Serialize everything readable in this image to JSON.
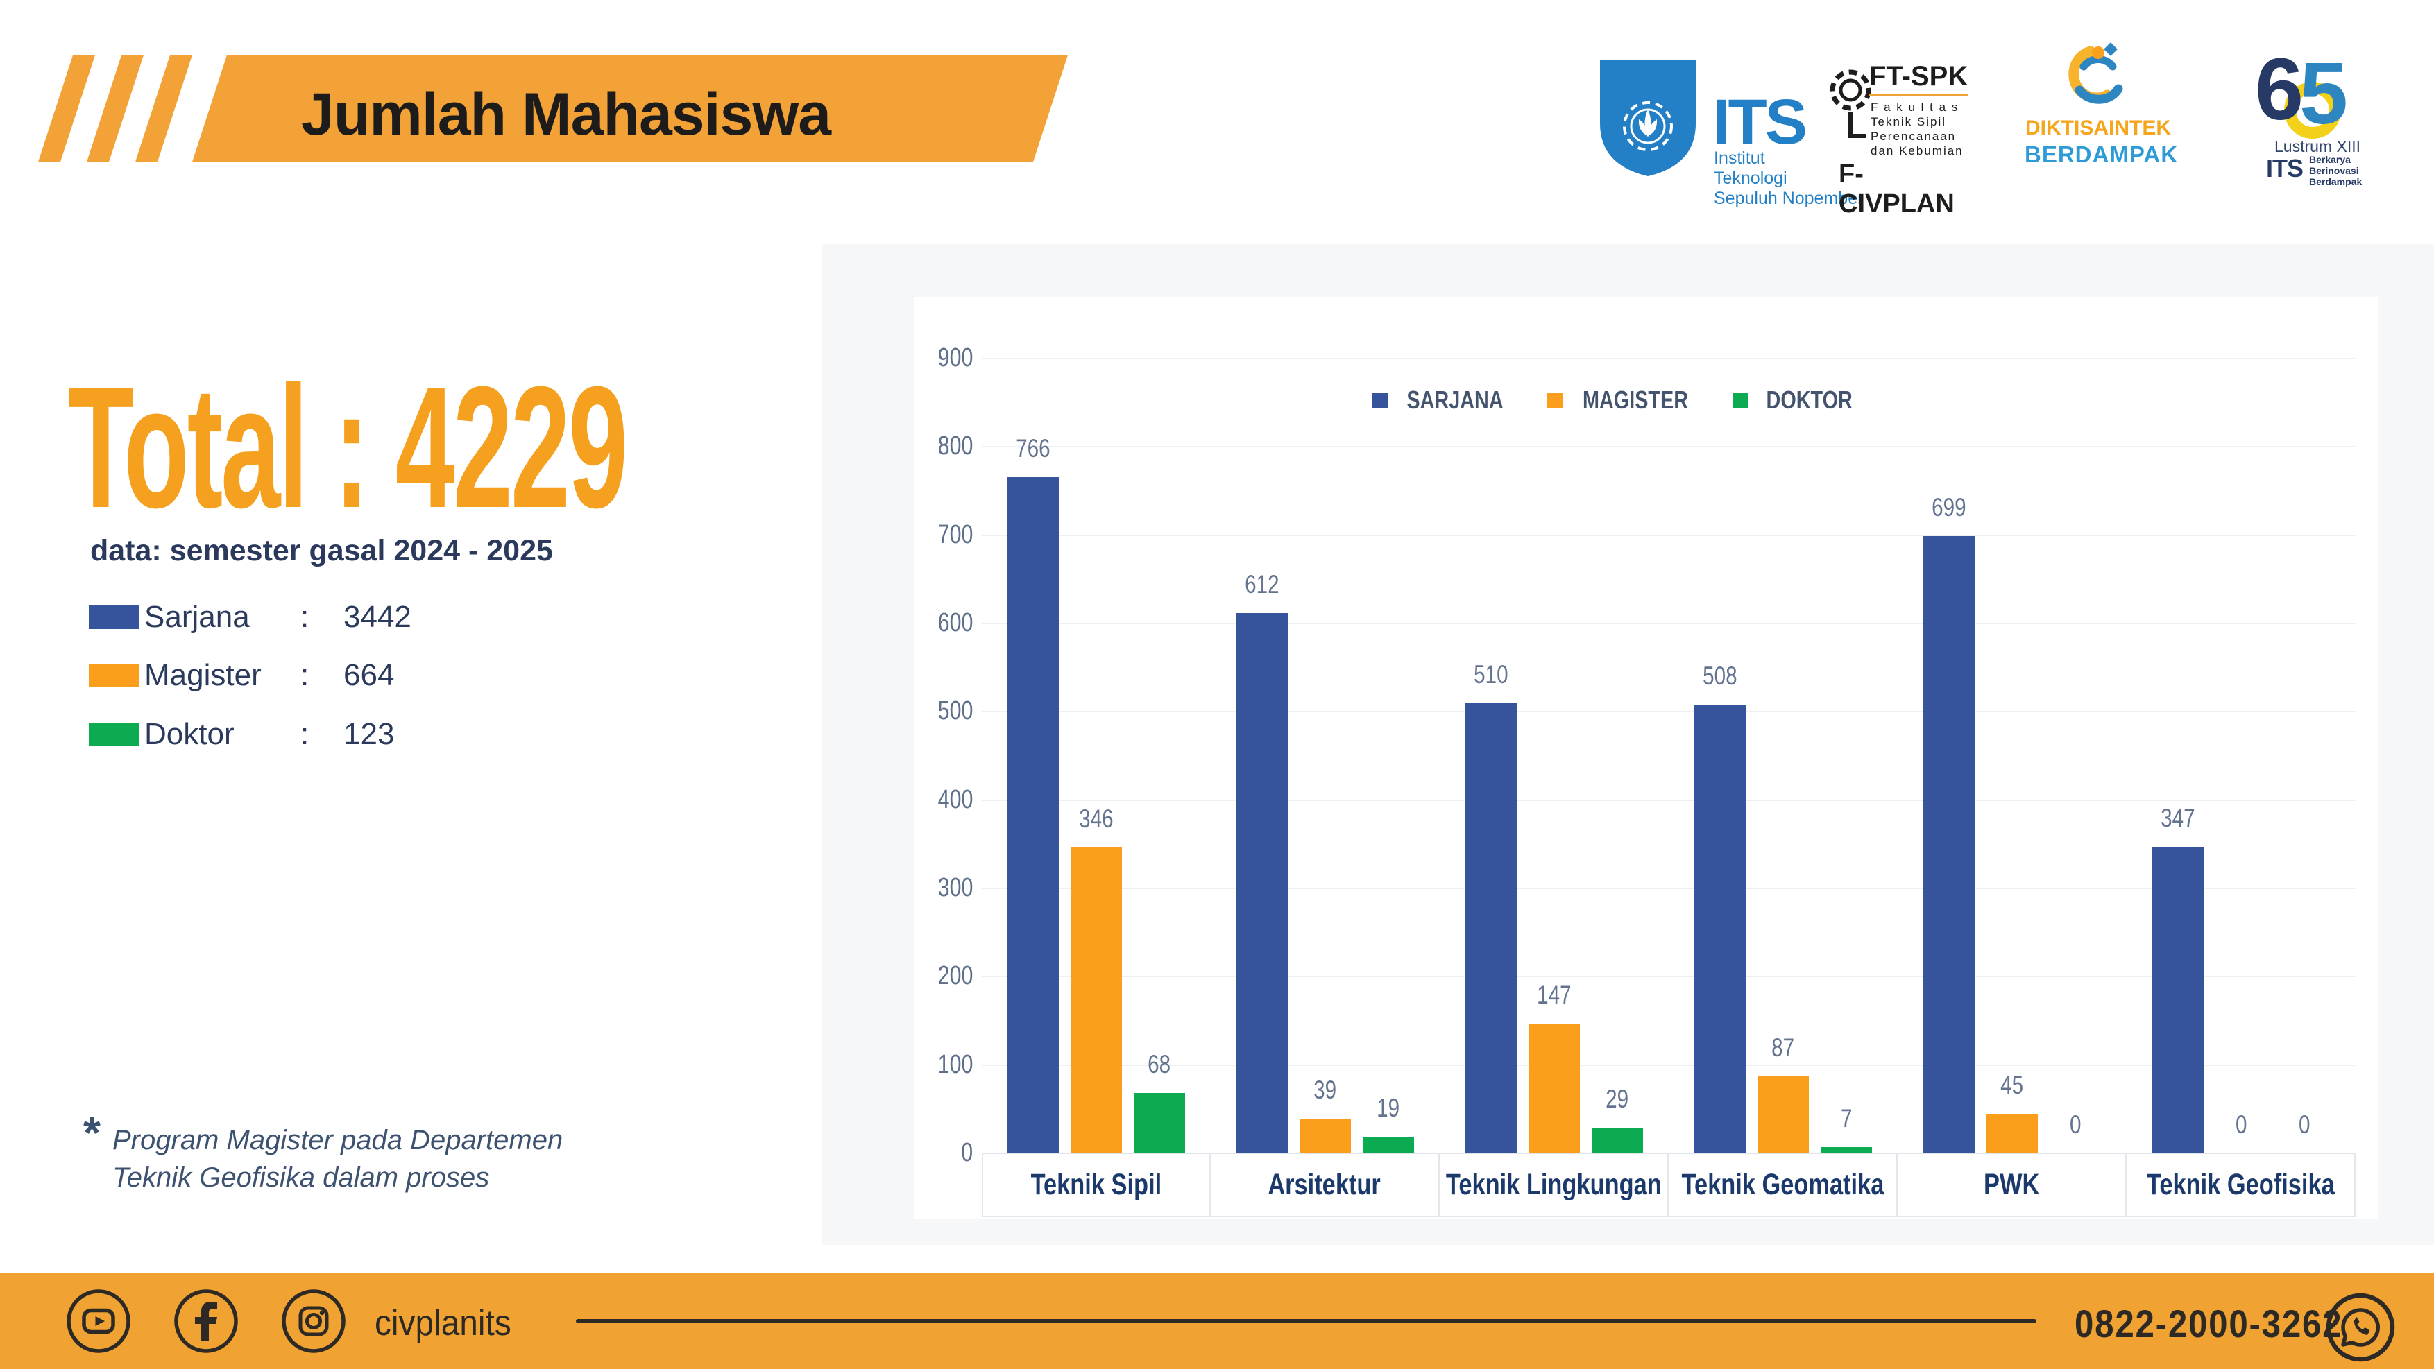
{
  "header": {
    "title": "Jumlah Mahasiswa"
  },
  "logos": {
    "its": {
      "acronym": "ITS",
      "lines": [
        "Institut",
        "Teknologi",
        "Sepuluh Nopember"
      ]
    },
    "ftspk": {
      "name": "FT-SPK",
      "lines": [
        "F a k u l t a s",
        "Teknik Sipil",
        "Perencanaan",
        "dan Kebumian"
      ],
      "footer": "F-CIVPLAN"
    },
    "diktisaintek": {
      "line1": "DIKTISAINTEK",
      "line2": "BERDAMPAK"
    },
    "lustrum": {
      "number6": "6",
      "number5": "5",
      "caption": "Lustrum XIII",
      "its": "ITS",
      "taglines": [
        "Berkarya",
        "Berinovasi",
        "Berdampak"
      ]
    }
  },
  "summary": {
    "total": "Total : 4229",
    "subtitle": "data: semester gasal 2024 - 2025",
    "legend": [
      {
        "label": "Sarjana",
        "colon": ":",
        "value": "3442"
      },
      {
        "label": "Magister",
        "colon": ":",
        "value": "664"
      },
      {
        "label": "Doktor",
        "colon": ":",
        "value": "123"
      }
    ]
  },
  "footnote": {
    "star": "*",
    "line1": "Program Magister pada Departemen",
    "line2": "Teknik Geofisika dalam proses"
  },
  "chart_data": {
    "type": "bar",
    "title": "",
    "categories": [
      "Teknik Sipil",
      "Arsitektur",
      "Teknik Lingkungan",
      "Teknik Geomatika",
      "PWK",
      "Teknik Geofisika"
    ],
    "series": [
      {
        "name": "SARJANA",
        "color": "#35549B",
        "values": [
          766,
          612,
          510,
          508,
          699,
          347
        ]
      },
      {
        "name": "MAGISTER",
        "color": "#FA9E1C",
        "values": [
          346,
          39,
          147,
          87,
          45,
          0
        ]
      },
      {
        "name": "DOKTOR",
        "color": "#0CAB51",
        "values": [
          68,
          19,
          29,
          7,
          0,
          0
        ]
      }
    ],
    "ylim": [
      0,
      900
    ],
    "yticks": [
      0,
      100,
      200,
      300,
      400,
      500,
      600,
      700,
      800,
      900
    ],
    "grid": true,
    "legend_position": "top-center",
    "xlabel": "",
    "ylabel": ""
  },
  "footer": {
    "handle": "civplanits",
    "phone": "0822-2000-3262",
    "icons": [
      "youtube-icon",
      "facebook-icon",
      "instagram-icon",
      "whatsapp-icon"
    ]
  },
  "colors": {
    "accent_orange": "#F2A237",
    "total_orange": "#F5A01E",
    "bar_blue": "#35549B",
    "bar_orange": "#FA9E1C",
    "bar_green": "#0CAB51",
    "navy_text": "#2B3A5C",
    "footer_dark": "#2D2925",
    "its_blue": "#2380C6"
  }
}
